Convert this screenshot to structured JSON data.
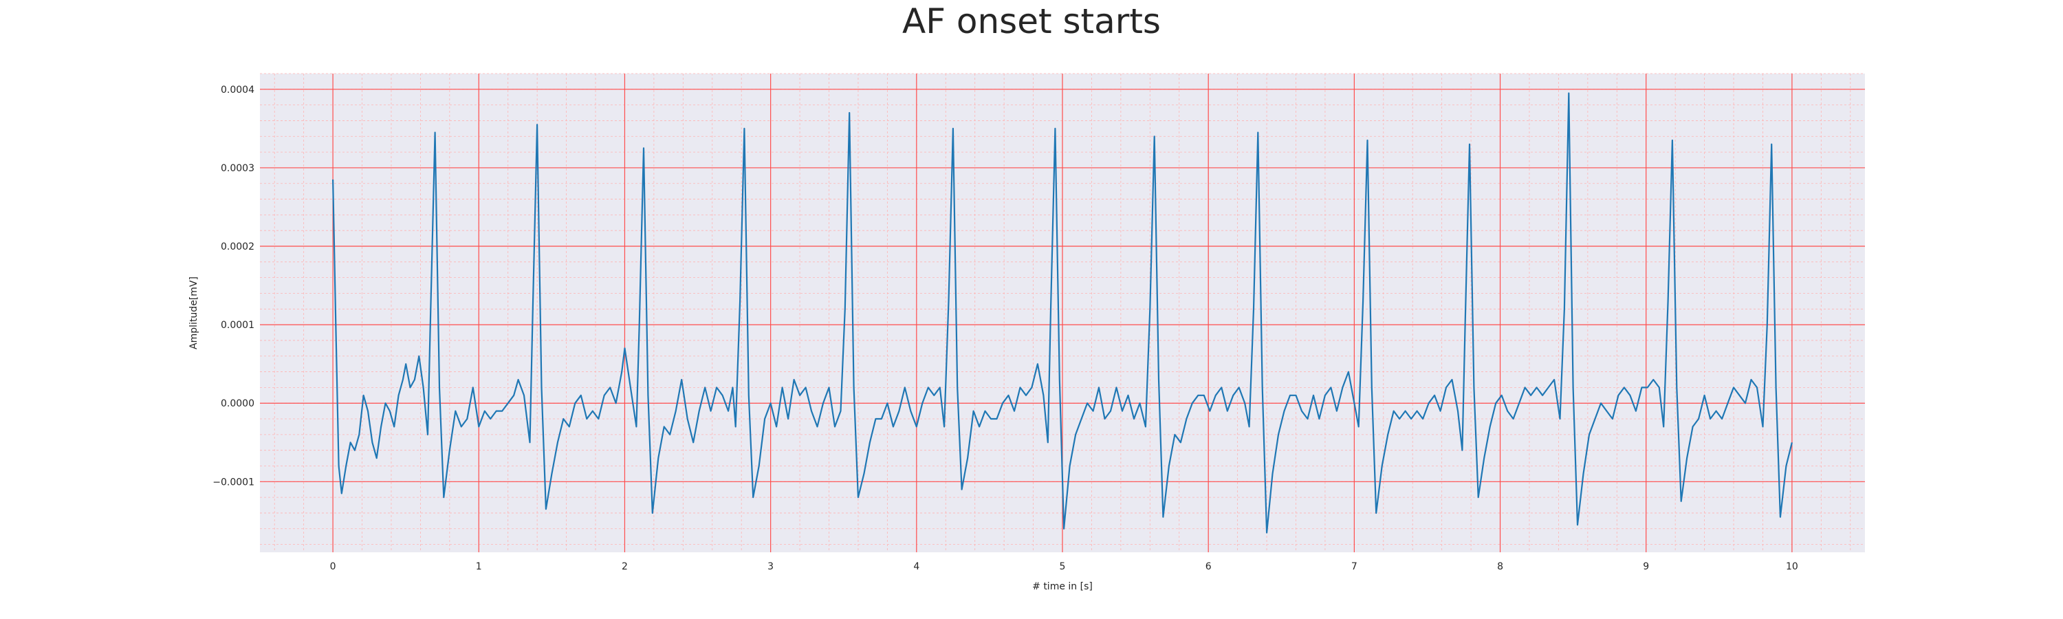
{
  "chart_data": {
    "type": "line",
    "title": "AF onset starts",
    "xlabel": "# time in [s]",
    "ylabel": "Amplitude[mV]",
    "xlim": [
      -0.5,
      10.5
    ],
    "ylim": [
      -0.00019,
      0.00042
    ],
    "x_ticks": [
      0,
      1,
      2,
      3,
      4,
      5,
      6,
      7,
      8,
      9,
      10
    ],
    "x_tick_labels": [
      "0",
      "1",
      "2",
      "3",
      "4",
      "5",
      "6",
      "7",
      "8",
      "9",
      "10"
    ],
    "y_ticks": [
      -0.0001,
      0.0,
      0.0001,
      0.0002,
      0.0003,
      0.0004
    ],
    "y_tick_labels": [
      "−0.0001",
      "0.0000",
      "0.0001",
      "0.0002",
      "0.0003",
      "0.0004"
    ],
    "grid": "on (major red, minor pink)",
    "colors": {
      "background": "#eaeaf2",
      "line": "#1f77b4",
      "major_grid": "#ff4d4d",
      "minor_grid": "#ffb3b3"
    },
    "series": [
      {
        "values": [
          [
            0.0,
            0.000285
          ],
          [
            0.02,
            0.0001
          ],
          [
            0.04,
            -8e-05
          ],
          [
            0.06,
            -0.000115
          ],
          [
            0.09,
            -8e-05
          ],
          [
            0.12,
            -5e-05
          ],
          [
            0.15,
            -6e-05
          ],
          [
            0.18,
            -4e-05
          ],
          [
            0.21,
            1e-05
          ],
          [
            0.24,
            -1e-05
          ],
          [
            0.27,
            -5e-05
          ],
          [
            0.3,
            -7e-05
          ],
          [
            0.33,
            -3e-05
          ],
          [
            0.36,
            0.0
          ],
          [
            0.39,
            -1e-05
          ],
          [
            0.42,
            -3e-05
          ],
          [
            0.45,
            1e-05
          ],
          [
            0.48,
            3e-05
          ],
          [
            0.5,
            5e-05
          ],
          [
            0.53,
            2e-05
          ],
          [
            0.56,
            3e-05
          ],
          [
            0.59,
            6e-05
          ],
          [
            0.62,
            2e-05
          ],
          [
            0.65,
            -4e-05
          ],
          [
            0.67,
            0.00012
          ],
          [
            0.7,
            0.000345
          ],
          [
            0.73,
            2e-05
          ],
          [
            0.76,
            -0.00012
          ],
          [
            0.8,
            -6e-05
          ],
          [
            0.84,
            -1e-05
          ],
          [
            0.88,
            -3e-05
          ],
          [
            0.92,
            -2e-05
          ],
          [
            0.96,
            2e-05
          ],
          [
            1.0,
            -3e-05
          ],
          [
            1.04,
            -1e-05
          ],
          [
            1.08,
            -2e-05
          ],
          [
            1.12,
            -1e-05
          ],
          [
            1.16,
            -1e-05
          ],
          [
            1.2,
            0.0
          ],
          [
            1.24,
            1e-05
          ],
          [
            1.27,
            3e-05
          ],
          [
            1.31,
            1e-05
          ],
          [
            1.35,
            -5e-05
          ],
          [
            1.37,
            0.00012
          ],
          [
            1.4,
            0.000355
          ],
          [
            1.43,
            2e-05
          ],
          [
            1.46,
            -0.000135
          ],
          [
            1.5,
            -9e-05
          ],
          [
            1.54,
            -5e-05
          ],
          [
            1.58,
            -2e-05
          ],
          [
            1.62,
            -3e-05
          ],
          [
            1.66,
            0.0
          ],
          [
            1.7,
            1e-05
          ],
          [
            1.74,
            -2e-05
          ],
          [
            1.78,
            -1e-05
          ],
          [
            1.82,
            -2e-05
          ],
          [
            1.86,
            1e-05
          ],
          [
            1.9,
            2e-05
          ],
          [
            1.94,
            0.0
          ],
          [
            1.98,
            4e-05
          ],
          [
            2.0,
            7e-05
          ],
          [
            2.04,
            2e-05
          ],
          [
            2.08,
            -3e-05
          ],
          [
            2.1,
            0.0001
          ],
          [
            2.13,
            0.000325
          ],
          [
            2.16,
            1e-05
          ],
          [
            2.19,
            -0.00014
          ],
          [
            2.23,
            -7e-05
          ],
          [
            2.27,
            -3e-05
          ],
          [
            2.31,
            -4e-05
          ],
          [
            2.35,
            -1e-05
          ],
          [
            2.39,
            3e-05
          ],
          [
            2.43,
            -2e-05
          ],
          [
            2.47,
            -5e-05
          ],
          [
            2.51,
            -1e-05
          ],
          [
            2.55,
            2e-05
          ],
          [
            2.59,
            -1e-05
          ],
          [
            2.63,
            2e-05
          ],
          [
            2.67,
            1e-05
          ],
          [
            2.71,
            -1e-05
          ],
          [
            2.74,
            2e-05
          ],
          [
            2.76,
            -3e-05
          ],
          [
            2.79,
            0.00013
          ],
          [
            2.82,
            0.00035
          ],
          [
            2.85,
            1e-05
          ],
          [
            2.88,
            -0.00012
          ],
          [
            2.92,
            -8e-05
          ],
          [
            2.96,
            -2e-05
          ],
          [
            3.0,
            0.0
          ],
          [
            3.04,
            -3e-05
          ],
          [
            3.08,
            2e-05
          ],
          [
            3.12,
            -2e-05
          ],
          [
            3.16,
            3e-05
          ],
          [
            3.2,
            1e-05
          ],
          [
            3.24,
            2e-05
          ],
          [
            3.28,
            -1e-05
          ],
          [
            3.32,
            -3e-05
          ],
          [
            3.36,
            0.0
          ],
          [
            3.4,
            2e-05
          ],
          [
            3.44,
            -3e-05
          ],
          [
            3.48,
            -1e-05
          ],
          [
            3.51,
            0.00012
          ],
          [
            3.54,
            0.00037
          ],
          [
            3.57,
            2e-05
          ],
          [
            3.6,
            -0.00012
          ],
          [
            3.64,
            -9e-05
          ],
          [
            3.68,
            -5e-05
          ],
          [
            3.72,
            -2e-05
          ],
          [
            3.76,
            -2e-05
          ],
          [
            3.8,
            0.0
          ],
          [
            3.84,
            -3e-05
          ],
          [
            3.88,
            -1e-05
          ],
          [
            3.92,
            2e-05
          ],
          [
            3.96,
            -1e-05
          ],
          [
            4.0,
            -3e-05
          ],
          [
            4.04,
            0.0
          ],
          [
            4.08,
            2e-05
          ],
          [
            4.12,
            1e-05
          ],
          [
            4.16,
            2e-05
          ],
          [
            4.19,
            -3e-05
          ],
          [
            4.22,
            0.00013
          ],
          [
            4.25,
            0.00035
          ],
          [
            4.28,
            2e-05
          ],
          [
            4.31,
            -0.00011
          ],
          [
            4.35,
            -7e-05
          ],
          [
            4.39,
            -1e-05
          ],
          [
            4.43,
            -3e-05
          ],
          [
            4.47,
            -1e-05
          ],
          [
            4.51,
            -2e-05
          ],
          [
            4.55,
            -2e-05
          ],
          [
            4.59,
            0.0
          ],
          [
            4.63,
            1e-05
          ],
          [
            4.67,
            -1e-05
          ],
          [
            4.71,
            2e-05
          ],
          [
            4.75,
            1e-05
          ],
          [
            4.79,
            2e-05
          ],
          [
            4.83,
            5e-05
          ],
          [
            4.87,
            1e-05
          ],
          [
            4.9,
            -5e-05
          ],
          [
            4.92,
            0.00012
          ],
          [
            4.95,
            0.00035
          ],
          [
            4.98,
            3e-05
          ],
          [
            5.01,
            -0.00016
          ],
          [
            5.05,
            -8e-05
          ],
          [
            5.09,
            -4e-05
          ],
          [
            5.13,
            -2e-05
          ],
          [
            5.17,
            0.0
          ],
          [
            5.21,
            -1e-05
          ],
          [
            5.25,
            2e-05
          ],
          [
            5.29,
            -2e-05
          ],
          [
            5.33,
            -1e-05
          ],
          [
            5.37,
            2e-05
          ],
          [
            5.41,
            -1e-05
          ],
          [
            5.45,
            1e-05
          ],
          [
            5.49,
            -2e-05
          ],
          [
            5.53,
            0.0
          ],
          [
            5.57,
            -3e-05
          ],
          [
            5.6,
            0.00012
          ],
          [
            5.63,
            0.00034
          ],
          [
            5.66,
            3e-05
          ],
          [
            5.69,
            -0.000145
          ],
          [
            5.73,
            -8e-05
          ],
          [
            5.77,
            -4e-05
          ],
          [
            5.81,
            -5e-05
          ],
          [
            5.85,
            -2e-05
          ],
          [
            5.89,
            0.0
          ],
          [
            5.93,
            1e-05
          ],
          [
            5.97,
            1e-05
          ],
          [
            6.01,
            -1e-05
          ],
          [
            6.05,
            1e-05
          ],
          [
            6.09,
            2e-05
          ],
          [
            6.13,
            -1e-05
          ],
          [
            6.17,
            1e-05
          ],
          [
            6.21,
            2e-05
          ],
          [
            6.25,
            0.0
          ],
          [
            6.28,
            -3e-05
          ],
          [
            6.31,
            0.00012
          ],
          [
            6.34,
            0.000345
          ],
          [
            6.37,
            2e-05
          ],
          [
            6.4,
            -0.000165
          ],
          [
            6.44,
            -9e-05
          ],
          [
            6.48,
            -4e-05
          ],
          [
            6.52,
            -1e-05
          ],
          [
            6.56,
            1e-05
          ],
          [
            6.6,
            1e-05
          ],
          [
            6.64,
            -1e-05
          ],
          [
            6.68,
            -2e-05
          ],
          [
            6.72,
            1e-05
          ],
          [
            6.76,
            -2e-05
          ],
          [
            6.8,
            1e-05
          ],
          [
            6.84,
            2e-05
          ],
          [
            6.88,
            -1e-05
          ],
          [
            6.92,
            2e-05
          ],
          [
            6.96,
            4e-05
          ],
          [
            7.0,
            0.0
          ],
          [
            7.03,
            -3e-05
          ],
          [
            7.06,
            0.00013
          ],
          [
            7.09,
            0.000335
          ],
          [
            7.12,
            2e-05
          ],
          [
            7.15,
            -0.00014
          ],
          [
            7.19,
            -8e-05
          ],
          [
            7.23,
            -4e-05
          ],
          [
            7.27,
            -1e-05
          ],
          [
            7.31,
            -2e-05
          ],
          [
            7.35,
            -1e-05
          ],
          [
            7.39,
            -2e-05
          ],
          [
            7.43,
            -1e-05
          ],
          [
            7.47,
            -2e-05
          ],
          [
            7.51,
            0.0
          ],
          [
            7.55,
            1e-05
          ],
          [
            7.59,
            -1e-05
          ],
          [
            7.63,
            2e-05
          ],
          [
            7.67,
            3e-05
          ],
          [
            7.71,
            -1e-05
          ],
          [
            7.74,
            -6e-05
          ],
          [
            7.76,
            0.0001
          ],
          [
            7.79,
            0.00033
          ],
          [
            7.82,
            2e-05
          ],
          [
            7.85,
            -0.00012
          ],
          [
            7.89,
            -7e-05
          ],
          [
            7.93,
            -3e-05
          ],
          [
            7.97,
            0.0
          ],
          [
            8.01,
            1e-05
          ],
          [
            8.05,
            -1e-05
          ],
          [
            8.09,
            -2e-05
          ],
          [
            8.13,
            0.0
          ],
          [
            8.17,
            2e-05
          ],
          [
            8.21,
            1e-05
          ],
          [
            8.25,
            2e-05
          ],
          [
            8.29,
            1e-05
          ],
          [
            8.33,
            2e-05
          ],
          [
            8.37,
            3e-05
          ],
          [
            8.41,
            -2e-05
          ],
          [
            8.44,
            0.00012
          ],
          [
            8.47,
            0.000395
          ],
          [
            8.5,
            2e-05
          ],
          [
            8.53,
            -0.000155
          ],
          [
            8.57,
            -9e-05
          ],
          [
            8.61,
            -4e-05
          ],
          [
            8.65,
            -2e-05
          ],
          [
            8.69,
            0.0
          ],
          [
            8.73,
            -1e-05
          ],
          [
            8.77,
            -2e-05
          ],
          [
            8.81,
            1e-05
          ],
          [
            8.85,
            2e-05
          ],
          [
            8.89,
            1e-05
          ],
          [
            8.93,
            -1e-05
          ],
          [
            8.97,
            2e-05
          ],
          [
            9.01,
            2e-05
          ],
          [
            9.05,
            3e-05
          ],
          [
            9.09,
            2e-05
          ],
          [
            9.12,
            -3e-05
          ],
          [
            9.15,
            0.00013
          ],
          [
            9.18,
            0.000335
          ],
          [
            9.21,
            2e-05
          ],
          [
            9.24,
            -0.000125
          ],
          [
            9.28,
            -7e-05
          ],
          [
            9.32,
            -3e-05
          ],
          [
            9.36,
            -2e-05
          ],
          [
            9.4,
            1e-05
          ],
          [
            9.44,
            -2e-05
          ],
          [
            9.48,
            -1e-05
          ],
          [
            9.52,
            -2e-05
          ],
          [
            9.56,
            0.0
          ],
          [
            9.6,
            2e-05
          ],
          [
            9.64,
            1e-05
          ],
          [
            9.68,
            0.0
          ],
          [
            9.72,
            3e-05
          ],
          [
            9.76,
            2e-05
          ],
          [
            9.8,
            -3e-05
          ],
          [
            9.83,
            0.0001
          ],
          [
            9.86,
            0.00033
          ],
          [
            9.89,
            2e-05
          ],
          [
            9.92,
            -0.000145
          ],
          [
            9.96,
            -8e-05
          ],
          [
            10.0,
            -5e-05
          ]
        ]
      }
    ]
  }
}
